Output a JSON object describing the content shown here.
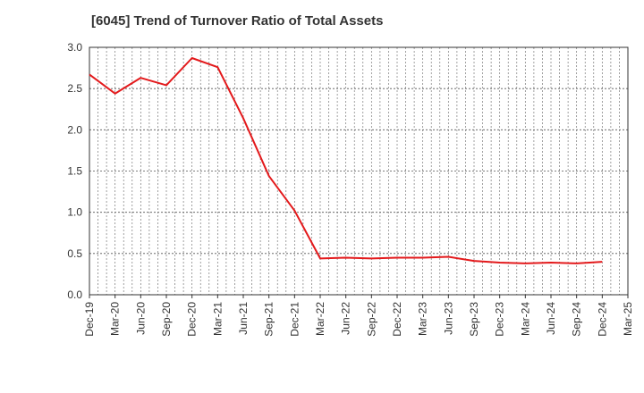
{
  "chart_data": {
    "type": "line",
    "title": "[6045]  Trend of Turnover Ratio of Total Assets",
    "xlabel": "",
    "ylabel": "",
    "categories": [
      "Dec-19",
      "Mar-20",
      "Jun-20",
      "Sep-20",
      "Dec-20",
      "Mar-21",
      "Jun-21",
      "Sep-21",
      "Dec-21",
      "Mar-22",
      "Jun-22",
      "Sep-22",
      "Dec-22",
      "Mar-23",
      "Jun-23",
      "Sep-23",
      "Dec-23",
      "Mar-24",
      "Jun-24",
      "Sep-24",
      "Dec-24",
      "Mar-25"
    ],
    "series": [
      {
        "color": "#e31a1c",
        "values": [
          2.67,
          2.44,
          2.63,
          2.54,
          2.87,
          2.76,
          2.14,
          1.44,
          1.02,
          0.44,
          0.45,
          0.44,
          0.45,
          0.45,
          0.46,
          0.41,
          0.39,
          0.38,
          0.39,
          0.38,
          0.4,
          null
        ]
      }
    ],
    "yticks": [
      "0.0",
      "0.5",
      "1.0",
      "1.5",
      "2.0",
      "2.5",
      "3.0"
    ],
    "ylim": [
      0,
      3.0
    ],
    "grid": true,
    "legend": "none"
  }
}
